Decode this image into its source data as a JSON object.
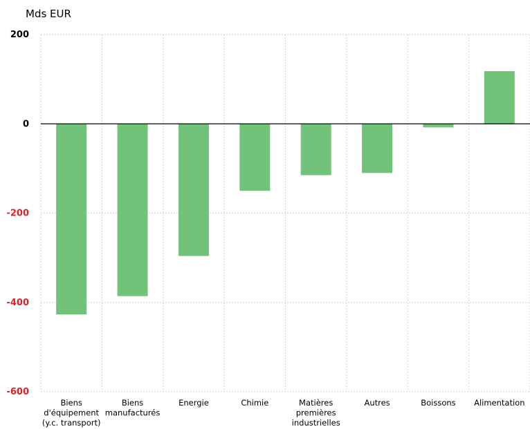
{
  "chart_data": {
    "type": "bar",
    "unit_label": "Mds EUR",
    "categories": [
      [
        "Biens",
        "d'équipement",
        "(y.c. transport)"
      ],
      [
        "Biens",
        "manufacturés"
      ],
      [
        "Energie"
      ],
      [
        "Chimie"
      ],
      [
        "Matières",
        "premières",
        "industrielles"
      ],
      [
        "Autres"
      ],
      [
        "Boissons"
      ],
      [
        "Alimentation"
      ]
    ],
    "values": [
      -427,
      -386,
      -296,
      -150,
      -115,
      -110,
      -8,
      118
    ],
    "ylim": [
      -600,
      200
    ],
    "yticks": [
      "200",
      "0",
      "-200",
      "-400",
      "-600"
    ],
    "grid": true,
    "bar_color": "#72c37a",
    "positive_tick_color": "#000000",
    "negative_tick_color": "#e02020"
  }
}
